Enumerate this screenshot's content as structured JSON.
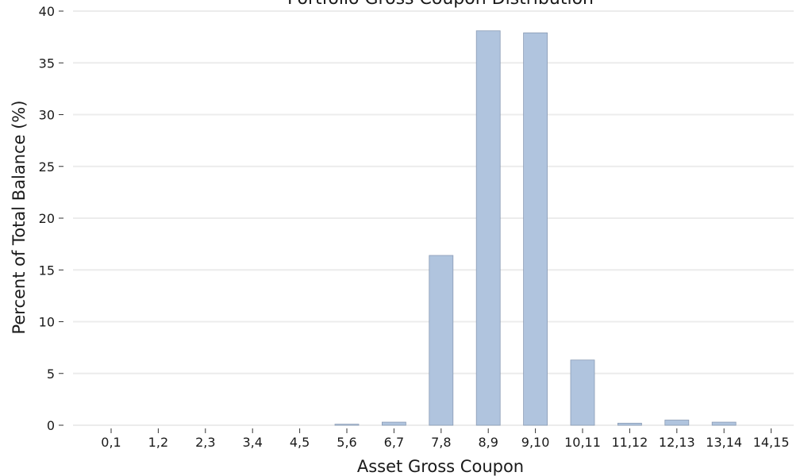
{
  "chart_data": {
    "type": "bar",
    "title": "Portfolio Gross Coupon Distribution",
    "xlabel": "Asset Gross Coupon",
    "ylabel": "Percent of Total Balance (%)",
    "categories": [
      "0,1",
      "1,2",
      "2,3",
      "3,4",
      "4,5",
      "5,6",
      "6,7",
      "7,8",
      "8,9",
      "9,10",
      "10,11",
      "11,12",
      "12,13",
      "13,14",
      "14,15"
    ],
    "values": [
      0,
      0,
      0,
      0,
      0,
      0.1,
      0.3,
      16.4,
      38.1,
      37.9,
      6.3,
      0.2,
      0.5,
      0.3,
      0
    ],
    "ylim": [
      0,
      40
    ],
    "yticks": [
      0,
      5,
      10,
      15,
      20,
      25,
      30,
      35,
      40
    ],
    "grid": "y",
    "bar_color": "#b0c4de"
  }
}
